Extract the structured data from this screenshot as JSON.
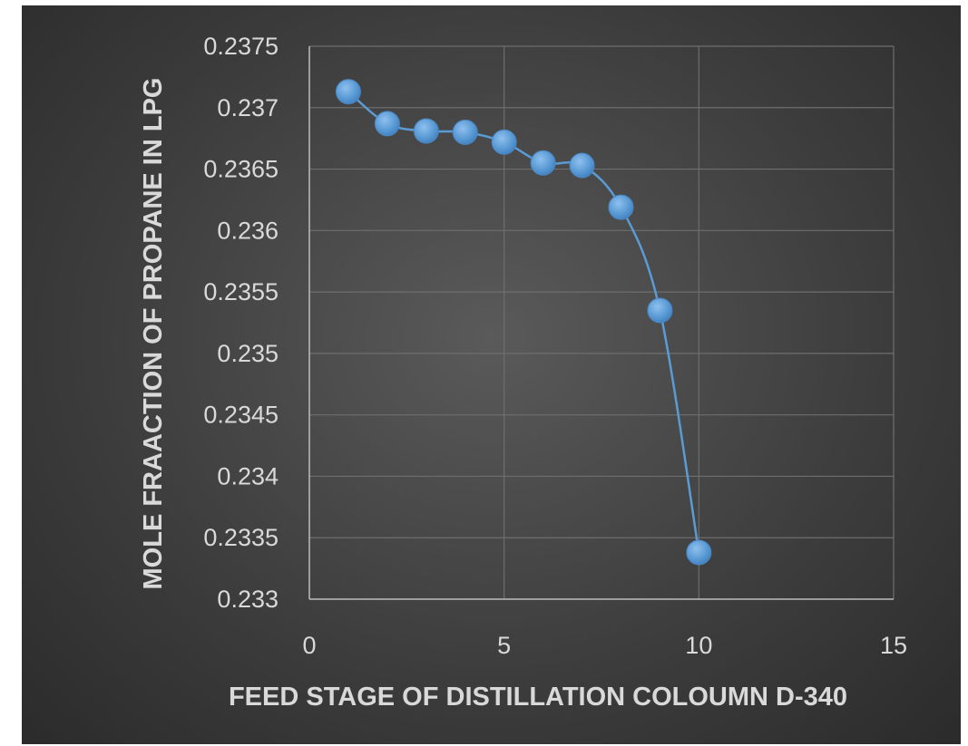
{
  "chart_data": {
    "type": "scatter",
    "title": "",
    "xlabel": "FEED STAGE OF DISTILLATION COLOUMN D-340",
    "ylabel": "MOLE FRAACTION OF PROPANE IN LPG",
    "xlim": [
      0,
      15
    ],
    "ylim": [
      0.233,
      0.2375
    ],
    "x_ticks": [
      0,
      5,
      10,
      15
    ],
    "x_tick_labels": [
      "0",
      "5",
      "10",
      "15"
    ],
    "y_ticks": [
      0.233,
      0.2335,
      0.234,
      0.2345,
      0.235,
      0.2355,
      0.236,
      0.2365,
      0.237,
      0.2375
    ],
    "y_tick_labels": [
      "0.233",
      "0.2335",
      "0.234",
      "0.2345",
      "0.235",
      "0.2355",
      "0.236",
      "0.2365",
      "0.237",
      "0.2375"
    ],
    "grid": true,
    "smooth_line": true,
    "series": [
      {
        "x": [
          1,
          2,
          3,
          4,
          5,
          6,
          7,
          8,
          9,
          10
        ],
        "y": [
          0.23713,
          0.23687,
          0.23681,
          0.2368,
          0.23672,
          0.23655,
          0.23653,
          0.23619,
          0.23535,
          0.23338
        ],
        "color": "#5b9bd5"
      }
    ]
  }
}
